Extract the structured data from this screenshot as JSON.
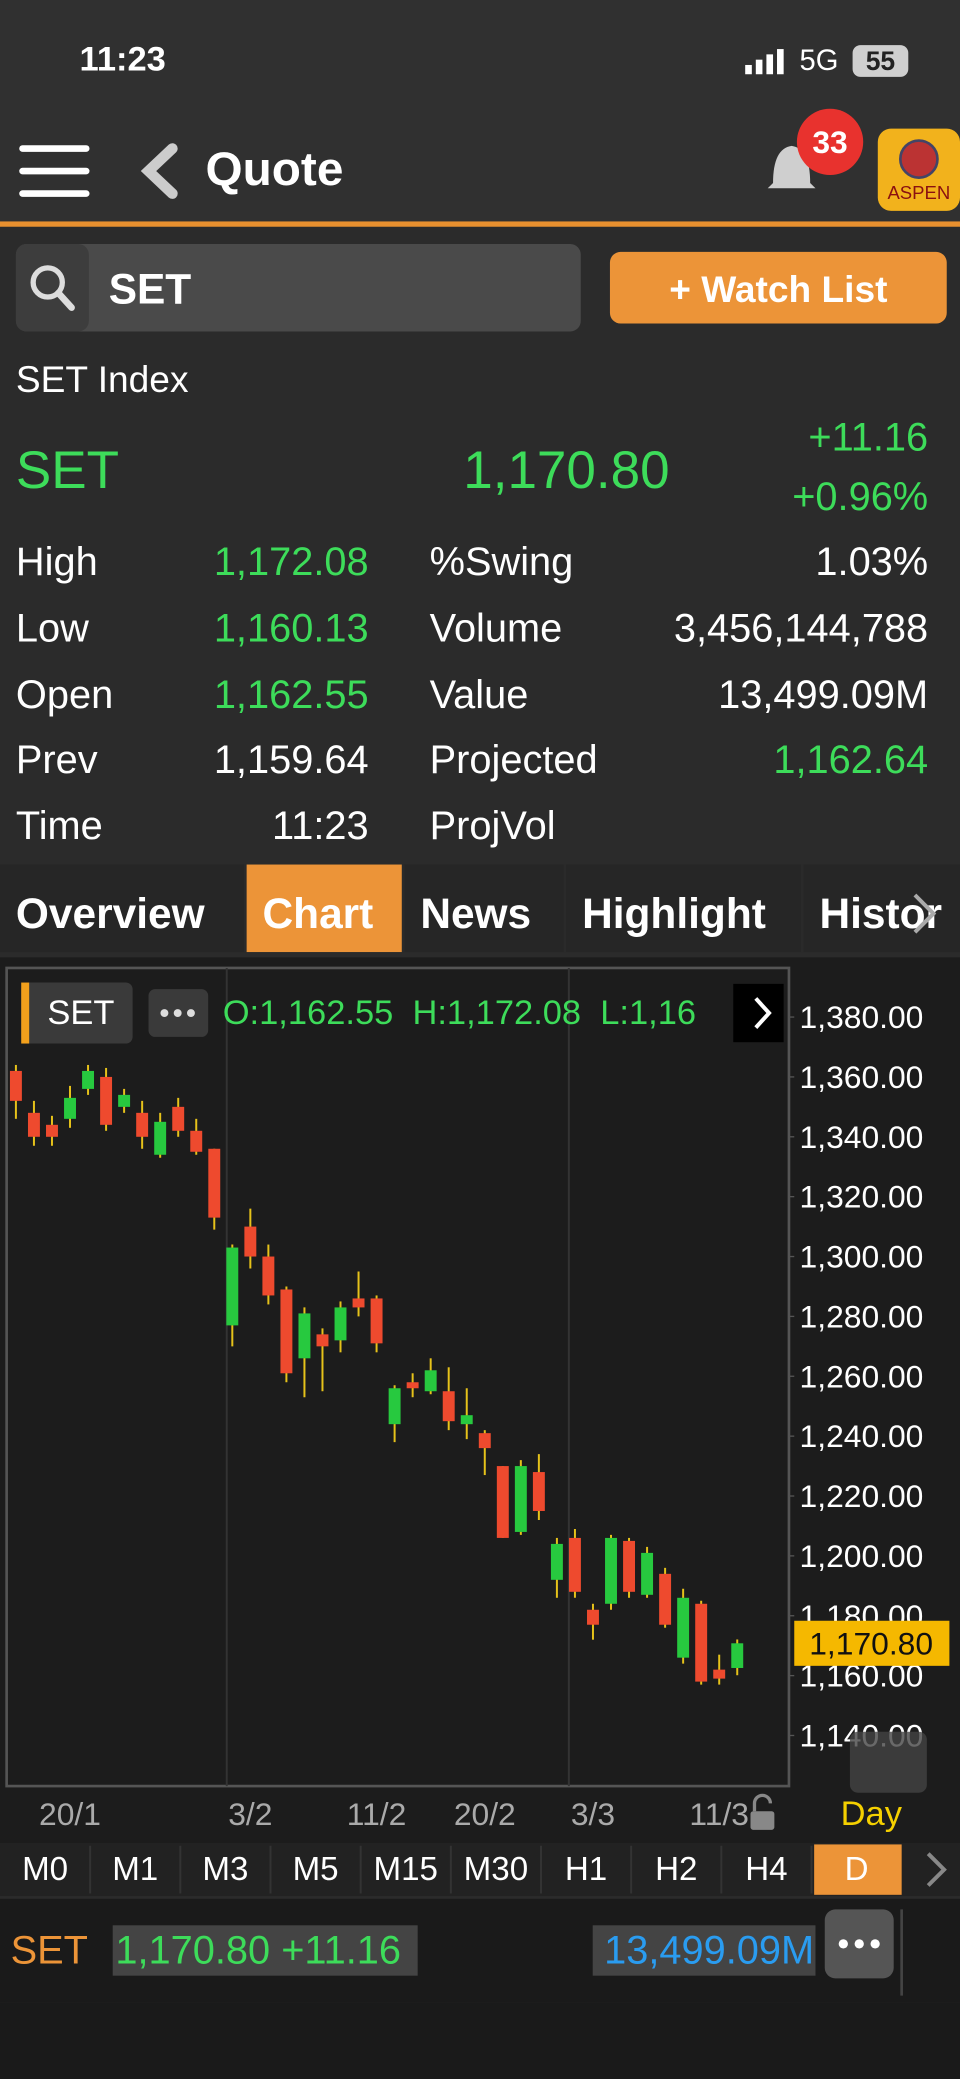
{
  "status_bar": {
    "time": "11:23",
    "network": "5G",
    "battery": "55"
  },
  "header": {
    "title": "Quote",
    "notifications": "33",
    "logo": "ASPEN"
  },
  "search": {
    "query": "SET",
    "button": "+ Watch List"
  },
  "quote": {
    "name": "SET Index",
    "symbol": "SET",
    "last": "1,170.80",
    "change": "+11.16",
    "change_pct": "+0.96%",
    "stats_left": [
      {
        "label": "High",
        "value": "1,172.08",
        "color": "#3ddc5a"
      },
      {
        "label": "Low",
        "value": "1,160.13",
        "color": "#3ddc5a"
      },
      {
        "label": "Open",
        "value": "1,162.55",
        "color": "#3ddc5a"
      },
      {
        "label": "Prev",
        "value": "1,159.64",
        "color": "#ffffff"
      },
      {
        "label": "Time",
        "value": "11:23",
        "color": "#ffffff"
      }
    ],
    "stats_right": [
      {
        "label": "%Swing",
        "value": "1.03%",
        "color": "#ffffff"
      },
      {
        "label": "Volume",
        "value": "3,456,144,788",
        "color": "#ffffff"
      },
      {
        "label": "Value",
        "value": "13,499.09M",
        "color": "#ffffff"
      },
      {
        "label": "Projected",
        "value": "1,162.64",
        "color": "#3ddc5a"
      },
      {
        "label": "ProjVol"
      }
    ]
  },
  "tabs": {
    "items": [
      "Overview",
      "Chart",
      "News",
      "Highlight",
      "Histor"
    ],
    "selected": 1
  },
  "chart": {
    "type": "candlestick",
    "symbol": "SET",
    "ohlc": "O:1,162.55  H:1,172.08  L:1,16",
    "period": "Day",
    "up_color": "#27c93f",
    "down_color": "#ee4a2e",
    "categories": [
      null,
      null,
      null,
      "20/1",
      null,
      null,
      null,
      null,
      null,
      null,
      null,
      null,
      null,
      "3/2",
      null,
      null,
      null,
      null,
      null,
      null,
      "11/2",
      null,
      null,
      null,
      null,
      null,
      "20/2",
      null,
      null,
      null,
      null,
      null,
      "3/3",
      null,
      null,
      null,
      null,
      null,
      null,
      "11/3",
      null
    ],
    "open": [
      1362,
      1348,
      1344,
      1346,
      1356,
      1360,
      1350,
      1348,
      1334,
      1350,
      1342,
      1336,
      1277,
      1310,
      1300,
      1289,
      1266,
      1274,
      1272,
      1286,
      1286,
      1244,
      1258,
      1255,
      1255,
      1244,
      1241,
      1230,
      1208,
      1228,
      1192,
      1206,
      1182,
      1184,
      1205,
      1187,
      1194,
      1166,
      1184,
      1162,
      1162.55
    ],
    "high": [
      1364,
      1352,
      1347,
      1357,
      1364,
      1363,
      1356,
      1352,
      1348,
      1353,
      1346,
      1336,
      1304,
      1316,
      1304,
      1290,
      1283,
      1276,
      1285,
      1295,
      1287,
      1257,
      1261,
      1266,
      1263,
      1256,
      1242,
      1230,
      1232,
      1234,
      1206,
      1209,
      1184,
      1207,
      1206,
      1203,
      1196,
      1189,
      1185,
      1167,
      1172.08
    ],
    "low": [
      1346,
      1337,
      1337,
      1343,
      1354,
      1342,
      1348,
      1336,
      1333,
      1340,
      1334,
      1309,
      1270,
      1296,
      1284,
      1258,
      1253,
      1255,
      1268,
      1280,
      1268,
      1238,
      1253,
      1254,
      1242,
      1239,
      1227,
      1206,
      1207,
      1212,
      1186,
      1186,
      1172,
      1182,
      1186,
      1186,
      1176,
      1164,
      1157,
      1157,
      1160.13
    ],
    "close": [
      1352,
      1340,
      1340,
      1353,
      1362,
      1344,
      1354,
      1340,
      1345,
      1342,
      1335,
      1313,
      1303,
      1300,
      1287,
      1261,
      1281,
      1270,
      1283,
      1283,
      1271,
      1256,
      1256,
      1262,
      1245,
      1247,
      1236,
      1206,
      1230,
      1215,
      1204,
      1188,
      1177,
      1206,
      1188,
      1201,
      1177,
      1186,
      1158,
      1159,
      1170.8
    ],
    "ylim": [
      1123.1,
      1396.4
    ],
    "yticks": [
      {
        "value": 1380,
        "label": "1,380.00"
      },
      {
        "value": 1360,
        "label": "1,360.00"
      },
      {
        "value": 1340,
        "label": "1,340.00"
      },
      {
        "value": 1320,
        "label": "1,320.00"
      },
      {
        "value": 1300,
        "label": "1,300.00"
      },
      {
        "value": 1280,
        "label": "1,280.00"
      },
      {
        "value": 1260,
        "label": "1,260.00"
      },
      {
        "value": 1240,
        "label": "1,240.00"
      },
      {
        "value": 1220,
        "label": "1,220.00"
      },
      {
        "value": 1200,
        "label": "1,200.00"
      },
      {
        "value": 1180,
        "label": "1,180.00"
      },
      {
        "value": 1160,
        "label": "1,160.00"
      },
      {
        "value": 1140,
        "label": "1,140.00"
      }
    ],
    "last_price": {
      "value": 1170.8,
      "label": "1,170.80"
    }
  },
  "timeframes": {
    "items": [
      "M0",
      "M1",
      "M3",
      "M5",
      "M15",
      "M30",
      "H1",
      "H2",
      "H4",
      "D"
    ],
    "selected": 9
  },
  "footer": {
    "symbol": "SET",
    "price": "1,170.80 +11.16",
    "value": "13,499.09M"
  }
}
